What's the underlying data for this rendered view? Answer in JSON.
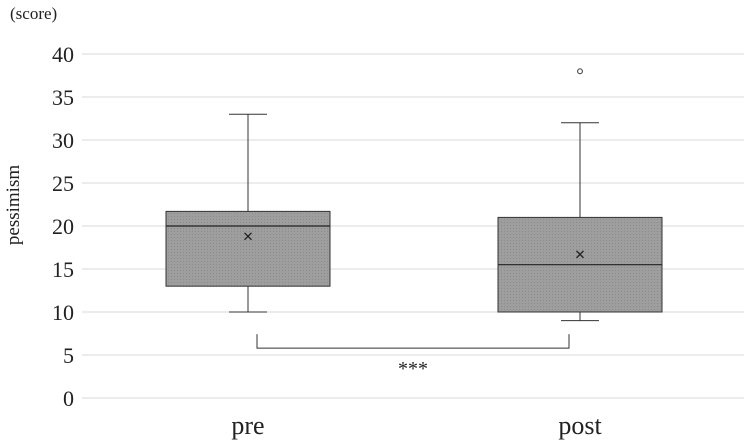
{
  "chart_data": {
    "type": "box",
    "categories": [
      "pre",
      "post"
    ],
    "ylabel": "pessimism",
    "unit_label": "(score)",
    "ylim": [
      0,
      40
    ],
    "yticks": [
      0,
      5,
      10,
      15,
      20,
      25,
      30,
      35,
      40
    ],
    "ytick_labels": [
      "0",
      "5",
      "10",
      "15",
      "20",
      "25",
      "30",
      "35",
      "40"
    ],
    "grid": true,
    "box_color": "#9e9e9e",
    "boxes": [
      {
        "category": "pre",
        "min": 10,
        "q1": 13,
        "median": 20,
        "q3": 21.7,
        "max": 33,
        "mean": 18.8,
        "outliers": []
      },
      {
        "category": "post",
        "min": 9,
        "q1": 10,
        "median": 15.5,
        "q3": 21,
        "max": 32,
        "mean": 16.7,
        "outliers": [
          38
        ]
      }
    ],
    "significance": {
      "label": "***",
      "between": [
        "pre",
        "post"
      ],
      "bracket_y": 5.8
    }
  }
}
